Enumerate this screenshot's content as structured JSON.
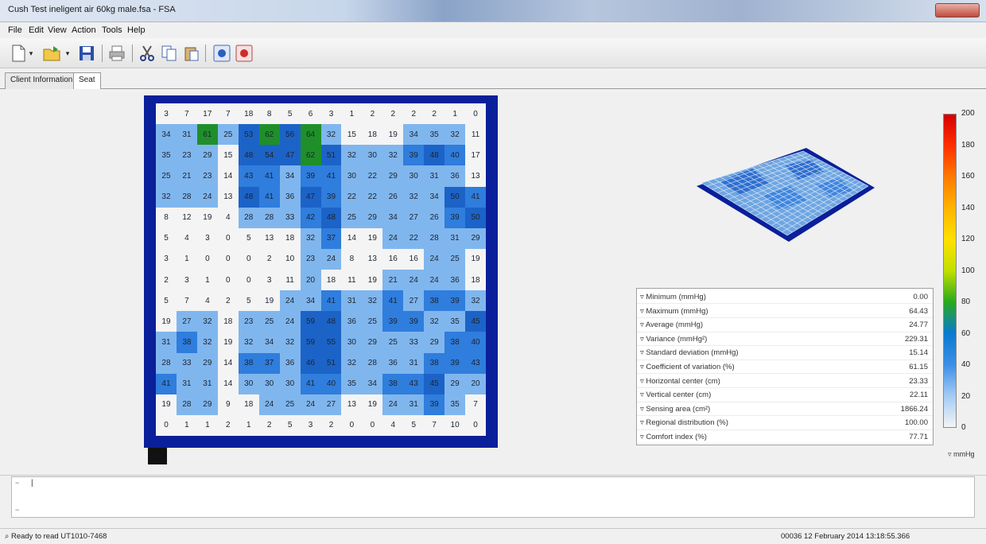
{
  "window": {
    "title": "Cush Test ineligent air  60kg male.fsa - FSA"
  },
  "menu": [
    "File",
    "Edit",
    "View",
    "Action",
    "Tools",
    "Help"
  ],
  "toolbar": {
    "buttons": [
      "new-icon",
      "open-icon",
      "save-icon",
      "print-icon",
      "cut-icon",
      "copy-icon",
      "paste-icon",
      "record-icon",
      "stop-icon"
    ]
  },
  "tabs": [
    {
      "label": "Client Information",
      "active": false
    },
    {
      "label": "Seat",
      "active": true
    }
  ],
  "pressure_map": {
    "rows": [
      [
        3,
        7,
        17,
        7,
        18,
        8,
        5,
        6,
        3,
        1,
        2,
        2,
        2,
        2,
        1,
        0
      ],
      [
        34,
        31,
        61,
        25,
        53,
        62,
        56,
        64,
        32,
        15,
        18,
        19,
        34,
        35,
        32,
        11
      ],
      [
        35,
        23,
        29,
        15,
        48,
        54,
        47,
        62,
        51,
        32,
        30,
        32,
        39,
        48,
        40,
        17
      ],
      [
        25,
        21,
        23,
        14,
        43,
        41,
        34,
        39,
        41,
        30,
        22,
        29,
        30,
        31,
        36,
        13
      ],
      [
        32,
        28,
        24,
        13,
        48,
        41,
        36,
        47,
        39,
        22,
        22,
        26,
        32,
        34,
        50,
        41
      ],
      [
        8,
        12,
        19,
        4,
        28,
        28,
        33,
        42,
        48,
        25,
        29,
        34,
        27,
        26,
        39,
        50
      ],
      [
        5,
        4,
        3,
        0,
        5,
        13,
        18,
        32,
        37,
        14,
        19,
        24,
        22,
        28,
        31,
        29
      ],
      [
        3,
        1,
        0,
        0,
        0,
        2,
        10,
        23,
        24,
        8,
        13,
        16,
        16,
        24,
        25,
        19
      ],
      [
        2,
        3,
        1,
        0,
        0,
        3,
        11,
        20,
        18,
        11,
        19,
        21,
        24,
        24,
        36,
        18
      ],
      [
        5,
        7,
        4,
        2,
        5,
        19,
        24,
        34,
        41,
        31,
        32,
        41,
        27,
        38,
        39,
        32
      ],
      [
        19,
        27,
        32,
        18,
        23,
        25,
        24,
        59,
        48,
        36,
        25,
        39,
        39,
        32,
        35,
        45
      ],
      [
        31,
        38,
        32,
        19,
        32,
        34,
        32,
        59,
        55,
        30,
        29,
        25,
        33,
        29,
        38,
        40
      ],
      [
        28,
        33,
        29,
        14,
        38,
        37,
        36,
        46,
        51,
        32,
        28,
        36,
        31,
        38,
        39,
        43
      ],
      [
        41,
        31,
        31,
        14,
        30,
        30,
        30,
        41,
        40,
        35,
        34,
        38,
        43,
        45,
        29,
        20
      ],
      [
        19,
        28,
        29,
        9,
        18,
        24,
        25,
        24,
        27,
        13,
        19,
        24,
        31,
        39,
        35,
        7
      ],
      [
        0,
        1,
        1,
        2,
        1,
        2,
        5,
        3,
        2,
        0,
        0,
        4,
        5,
        7,
        10,
        0
      ]
    ]
  },
  "statistics": [
    {
      "label": "Minimum (mmHg)",
      "value": "0.00"
    },
    {
      "label": "Maximum (mmHg)",
      "value": "64.43"
    },
    {
      "label": "Average (mmHg)",
      "value": "24.77"
    },
    {
      "label": "Variance (mmHg²)",
      "value": "229.31"
    },
    {
      "label": "Standard deviation (mmHg)",
      "value": "15.14"
    },
    {
      "label": "Coefficient of variation (%)",
      "value": "61.15"
    },
    {
      "label": "Horizontal center (cm)",
      "value": "23.33"
    },
    {
      "label": "Vertical center (cm)",
      "value": "22.11"
    },
    {
      "label": "Sensing area (cm²)",
      "value": "1866.24"
    },
    {
      "label": "Regional distribution (%)",
      "value": "100.00"
    },
    {
      "label": "Comfort index (%)",
      "value": "77.71"
    }
  ],
  "scale": {
    "labels": [
      "200",
      "180",
      "160",
      "140",
      "120",
      "100",
      "80",
      "60",
      "40",
      "20",
      "0"
    ],
    "unit": "mmHg",
    "colors": [
      "#d40000",
      "#ff3000",
      "#ff7a00",
      "#ffb400",
      "#ffe000",
      "#c0e000",
      "#29a81e",
      "#0a7ad0",
      "#3c8fe6",
      "#a3cbf5",
      "#f4f4f4"
    ]
  },
  "status": {
    "left": "Ready to read UT1010-7468",
    "right": "00036    12 February 2014 13:18:55.366"
  }
}
